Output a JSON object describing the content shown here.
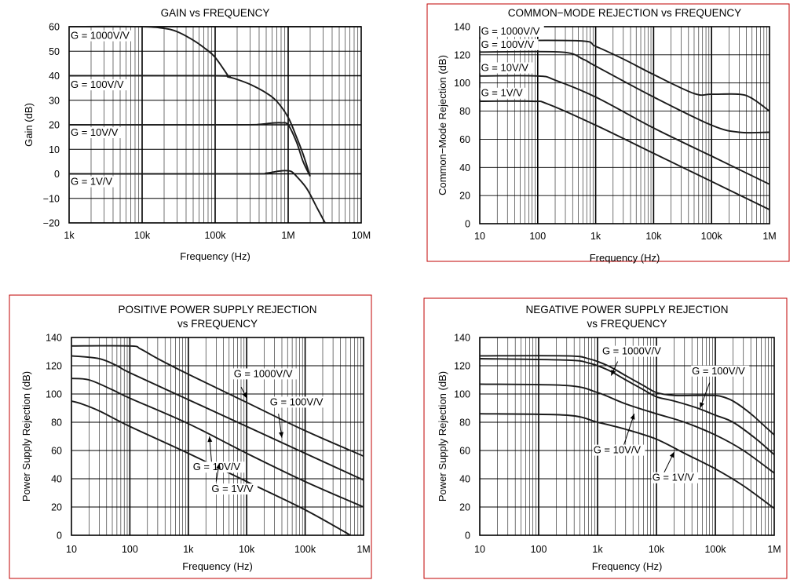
{
  "chart_data": [
    {
      "id": "gain",
      "type": "line",
      "title": "GAIN vs FREQUENCY",
      "xlabel": "Frequency (Hz)",
      "ylabel": "Gain (dB)",
      "xscale": "log",
      "xlim": [
        1000,
        10000000
      ],
      "ylim": [
        -20,
        60
      ],
      "grid": true,
      "framed": false,
      "xticks": [
        {
          "v": 1000,
          "t": "1k"
        },
        {
          "v": 10000,
          "t": "10k"
        },
        {
          "v": 100000,
          "t": "100k"
        },
        {
          "v": 1000000,
          "t": "1M"
        },
        {
          "v": 10000000,
          "t": "10M"
        }
      ],
      "yticks": [
        {
          "v": 60,
          "t": "60"
        },
        {
          "v": 50,
          "t": "50"
        },
        {
          "v": 40,
          "t": "40"
        },
        {
          "v": 30,
          "t": "30"
        },
        {
          "v": 20,
          "t": "20"
        },
        {
          "v": 10,
          "t": "10"
        },
        {
          "v": 0,
          "t": "0"
        },
        {
          "v": -10,
          "t": "−10"
        },
        {
          "v": -20,
          "t": "−20"
        }
      ],
      "hlines": [
        60,
        40,
        20,
        0
      ],
      "series": [
        {
          "name": "G = 1000V/V",
          "x": [
            1000,
            10000,
            20000,
            30000,
            50000,
            70000,
            100000,
            150000
          ],
          "y": [
            60,
            60,
            59.3,
            58,
            54.5,
            51.5,
            47.5,
            40
          ]
        },
        {
          "name": "G = 100V/V",
          "x": [
            1000,
            100000,
            150000,
            200000,
            300000,
            500000,
            700000,
            1000000,
            1300000,
            1600000,
            2000000
          ],
          "y": [
            40,
            40,
            39.5,
            38.5,
            36.5,
            33,
            29.5,
            23,
            15,
            8,
            -1
          ]
        },
        {
          "name": "G = 10V/V",
          "x": [
            1000,
            200000,
            400000,
            600000,
            800000,
            1000000,
            1300000,
            1600000,
            2000000
          ],
          "y": [
            20,
            20,
            20.2,
            20.7,
            20.8,
            20,
            13,
            5,
            -1
          ]
        },
        {
          "name": "G = 1V/V",
          "x": [
            1000,
            300000,
            500000,
            700000,
            900000,
            1100000,
            1300000,
            1800000,
            2500000,
            3200000
          ],
          "y": [
            0,
            0,
            0.3,
            1,
            1.3,
            1,
            -1,
            -6,
            -14,
            -20
          ]
        }
      ],
      "annotations": [
        {
          "text": "G = 1000V/V",
          "x": 1050,
          "y": 55
        },
        {
          "text": "G = 100V/V",
          "x": 1050,
          "y": 35
        },
        {
          "text": "G = 10V/V",
          "x": 1050,
          "y": 15.5
        },
        {
          "text": "G = 1V/V",
          "x": 1050,
          "y": -4.5
        }
      ]
    },
    {
      "id": "cmr",
      "type": "line",
      "title": "COMMON−MODE REJECTION vs FREQUENCY",
      "xlabel": "Frequency (Hz)",
      "ylabel": "Common−Mode Rejection (dB)",
      "xscale": "log",
      "xlim": [
        10,
        1000000
      ],
      "ylim": [
        0,
        140
      ],
      "grid": true,
      "framed": true,
      "xticks": [
        {
          "v": 10,
          "t": "10"
        },
        {
          "v": 100,
          "t": "100"
        },
        {
          "v": 1000,
          "t": "1k"
        },
        {
          "v": 10000,
          "t": "10k"
        },
        {
          "v": 100000,
          "t": "100k"
        },
        {
          "v": 1000000,
          "t": "1M"
        }
      ],
      "yticks": [
        {
          "v": 140,
          "t": "140"
        },
        {
          "v": 120,
          "t": "120"
        },
        {
          "v": 100,
          "t": "100"
        },
        {
          "v": 80,
          "t": "80"
        },
        {
          "v": 60,
          "t": "60"
        },
        {
          "v": 40,
          "t": "40"
        },
        {
          "v": 20,
          "t": "20"
        },
        {
          "v": 0,
          "t": "0"
        }
      ],
      "series": [
        {
          "name": "G = 1000V/V",
          "x": [
            10,
            500,
            1000,
            3000,
            10000,
            50000,
            100000,
            300000,
            500000,
            1000000
          ],
          "y": [
            130,
            130,
            126,
            117,
            106,
            92.5,
            92,
            92,
            89,
            80
          ]
        },
        {
          "name": "G = 100V/V",
          "x": [
            10,
            250,
            600,
            1000,
            10000,
            100000,
            300000,
            1000000
          ],
          "y": [
            122,
            122,
            117,
            112,
            90,
            70,
            65,
            65
          ]
        },
        {
          "name": "G = 10V/V",
          "x": [
            10,
            100,
            200,
            1000,
            10000,
            100000,
            1000000
          ],
          "y": [
            105,
            105,
            102,
            90,
            68,
            48,
            28
          ]
        },
        {
          "name": "G = 1V/V",
          "x": [
            10,
            80,
            150,
            1000,
            10000,
            100000,
            1000000
          ],
          "y": [
            87,
            87,
            85,
            70,
            50,
            30,
            10
          ]
        }
      ],
      "annotations": [
        {
          "text": "G = 1000V/V",
          "x": 10.5,
          "y": 134.5
        },
        {
          "text": "G = 100V/V",
          "x": 10.5,
          "y": 125
        },
        {
          "text": "G = 10V/V",
          "x": 10.5,
          "y": 108.5
        },
        {
          "text": "G = 1V/V",
          "x": 10.5,
          "y": 90.5
        }
      ]
    },
    {
      "id": "ppsr",
      "type": "line",
      "title": "POSITIVE POWER SUPPLY REJECTION",
      "subtitle": "vs FREQUENCY",
      "xlabel": "Frequency (Hz)",
      "ylabel": "Power Supply Rejection (dB)",
      "xscale": "log",
      "xlim": [
        10,
        1000000
      ],
      "ylim": [
        0,
        140
      ],
      "grid": true,
      "framed": true,
      "xticks": [
        {
          "v": 10,
          "t": "10"
        },
        {
          "v": 100,
          "t": "100"
        },
        {
          "v": 1000,
          "t": "1k"
        },
        {
          "v": 10000,
          "t": "10k"
        },
        {
          "v": 100000,
          "t": "100k"
        },
        {
          "v": 1000000,
          "t": "1M"
        }
      ],
      "yticks": [
        {
          "v": 140,
          "t": "140"
        },
        {
          "v": 120,
          "t": "120"
        },
        {
          "v": 100,
          "t": "100"
        },
        {
          "v": 80,
          "t": "80"
        },
        {
          "v": 60,
          "t": "60"
        },
        {
          "v": 40,
          "t": "40"
        },
        {
          "v": 20,
          "t": "20"
        },
        {
          "v": 0,
          "t": "0"
        }
      ],
      "series": [
        {
          "name": "G = 1000V/V",
          "x": [
            10,
            100,
            150,
            300,
            1000,
            10000,
            100000,
            1000000
          ],
          "y": [
            134,
            134,
            132,
            125,
            114,
            94,
            74,
            56
          ]
        },
        {
          "name": "G = 100V/V",
          "x": [
            10,
            30,
            60,
            100,
            1000,
            10000,
            100000,
            1000000
          ],
          "y": [
            127,
            125,
            120,
            115,
            96,
            77,
            58,
            39
          ]
        },
        {
          "name": "G = 10V/V",
          "x": [
            10,
            20,
            50,
            100,
            1000,
            10000,
            100000,
            1000000
          ],
          "y": [
            111,
            110,
            103,
            97,
            79,
            58,
            38,
            20
          ]
        },
        {
          "name": "G = 1V/V",
          "x": [
            10,
            15,
            30,
            100,
            1000,
            10000,
            100000,
            600000
          ],
          "y": [
            95,
            93,
            88,
            77,
            58,
            38,
            18,
            0
          ]
        }
      ],
      "annotations": [
        {
          "text": "G = 1000V/V",
          "x": 6000,
          "y": 112,
          "ax": 8000,
          "ay": 105,
          "tx": 10000,
          "ty": 97
        },
        {
          "text": "G = 100V/V",
          "x": 25000,
          "y": 92,
          "ax": 35000,
          "ay": 86,
          "tx": 40000,
          "ty": 69
        },
        {
          "text": "G = 10V/V",
          "x": 1200,
          "y": 46,
          "ax": 2500,
          "ay": 52,
          "tx": 2300,
          "ty": 70
        },
        {
          "text": "G = 1V/V",
          "x": 2500,
          "y": 30.5,
          "ax": 3000,
          "ay": 38,
          "tx": 3400,
          "ty": 51
        }
      ]
    },
    {
      "id": "npsr",
      "type": "line",
      "title": "NEGATIVE POWER SUPPLY REJECTION",
      "subtitle": "vs FREQUENCY",
      "xlabel": "Frequency (Hz)",
      "ylabel": "Power Supply Rejection (dB)",
      "xscale": "log",
      "xlim": [
        10,
        1000000
      ],
      "ylim": [
        0,
        140
      ],
      "grid": true,
      "framed": true,
      "xticks": [
        {
          "v": 10,
          "t": "10"
        },
        {
          "v": 100,
          "t": "100"
        },
        {
          "v": 1000,
          "t": "1k"
        },
        {
          "v": 10000,
          "t": "10k"
        },
        {
          "v": 100000,
          "t": "100k"
        },
        {
          "v": 1000000,
          "t": "1M"
        }
      ],
      "yticks": [
        {
          "v": 140,
          "t": "140"
        },
        {
          "v": 120,
          "t": "120"
        },
        {
          "v": 100,
          "t": "100"
        },
        {
          "v": 80,
          "t": "80"
        },
        {
          "v": 60,
          "t": "60"
        },
        {
          "v": 40,
          "t": "40"
        },
        {
          "v": 20,
          "t": "20"
        },
        {
          "v": 0,
          "t": "0"
        }
      ],
      "series": [
        {
          "name": "G = 1000V/V",
          "x": [
            10,
            300,
            700,
            1500,
            3000,
            6000,
            10000,
            20000,
            40000,
            80000,
            120000,
            200000,
            400000,
            1000000
          ],
          "y": [
            127,
            127,
            125,
            120,
            113,
            106,
            101,
            99,
            99,
            99,
            98.5,
            95,
            86,
            71
          ]
        },
        {
          "name": "G = 100V/V",
          "x": [
            10,
            300,
            700,
            1500,
            3000,
            6000,
            10000,
            20000,
            50000,
            100000,
            200000,
            500000,
            1000000
          ],
          "y": [
            125,
            124,
            122,
            117,
            110,
            103,
            98,
            95,
            90,
            85,
            80,
            68,
            57
          ]
        },
        {
          "name": "G = 10V/V",
          "x": [
            10,
            300,
            1000,
            3000,
            10000,
            30000,
            100000,
            300000,
            1000000
          ],
          "y": [
            107,
            106,
            101,
            93,
            86,
            80,
            71,
            60,
            44
          ]
        },
        {
          "name": "G = 1V/V",
          "x": [
            10,
            300,
            1000,
            3000,
            10000,
            30000,
            100000,
            300000,
            1000000
          ],
          "y": [
            86,
            85,
            80,
            75,
            68,
            58,
            47,
            35,
            19
          ]
        }
      ],
      "annotations": [
        {
          "text": "G = 1000V/V",
          "x": 1200,
          "y": 128,
          "ax": 2200,
          "ay": 123,
          "tx": 1700,
          "ty": 113
        },
        {
          "text": "G = 100V/V",
          "x": 40000,
          "y": 114,
          "ax": 80000,
          "ay": 108,
          "tx": 55000,
          "ty": 90
        },
        {
          "text": "G = 10V/V",
          "x": 850,
          "y": 58,
          "ax": 2700,
          "ay": 62,
          "tx": 4200,
          "ty": 86
        },
        {
          "text": "G = 1V/V",
          "x": 8500,
          "y": 38.5,
          "ax": 13000,
          "ay": 43,
          "tx": 20000,
          "ty": 59
        }
      ]
    }
  ]
}
